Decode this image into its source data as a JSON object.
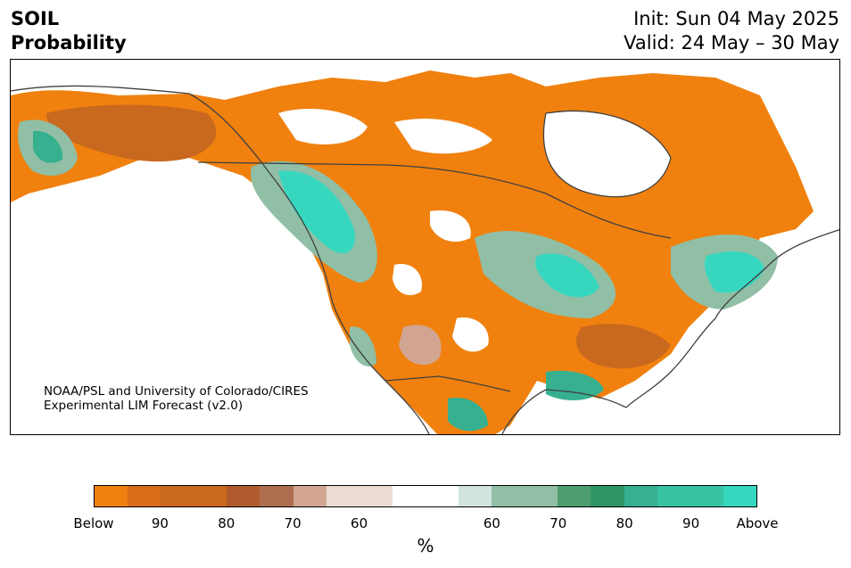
{
  "header": {
    "variable": "SOIL",
    "subtitle": "Probability",
    "init": "Init: Sun 04 May 2025",
    "valid": "Valid: 24 May – 30 May"
  },
  "credit": {
    "line1": "NOAA/PSL and University of Colorado/CIRES",
    "line2": "Experimental LIM Forecast (v2.0)"
  },
  "colorbar": {
    "unit": "%",
    "colors": [
      "#f0810f",
      "#d96d18",
      "#c9681f",
      "#c9681f",
      "#b05a2e",
      "#ae6e50",
      "#d2a592",
      "#eadbd3",
      "#eadbd3",
      "#ffffff",
      "#ffffff",
      "#d2e5dd",
      "#90bfa6",
      "#90bfa6",
      "#4f9d6e",
      "#2e9566",
      "#36b08f",
      "#38c3a3",
      "#38c3a3",
      "#37d7bf"
    ],
    "tick_labels": [
      "Below",
      "90",
      "80",
      "70",
      "60",
      "60",
      "70",
      "80",
      "90",
      "Above"
    ]
  },
  "map": {
    "colors": {
      "below_strong": "#f0810f",
      "below_mid": "#c9681f",
      "below_dark": "#b05a2e",
      "below_light": "#d2a592",
      "below_faint": "#eadbd3",
      "above_faint": "#d2e5dd",
      "above_light": "#90bfa6",
      "above_mid": "#36b08f",
      "above_strong": "#37d7bf",
      "coastline": "#404040"
    }
  }
}
